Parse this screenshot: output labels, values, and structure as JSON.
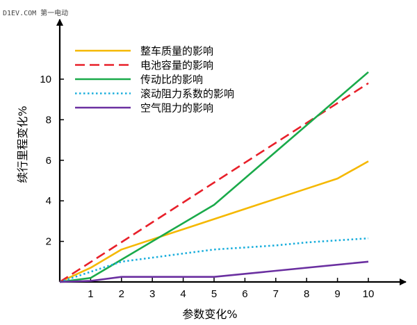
{
  "watermark": "D1EV.COM 第一电动",
  "chart_data": {
    "type": "line",
    "title": "",
    "xlabel": "参数变化%",
    "ylabel": "续行里程变化%",
    "xlim": [
      0,
      10
    ],
    "ylim": [
      0,
      10.5
    ],
    "xticks": [
      1,
      2,
      3,
      4,
      5,
      6,
      7,
      8,
      9,
      10
    ],
    "yticks": [
      2,
      4,
      6,
      8,
      10
    ],
    "grid": false,
    "legend_position": "top-left",
    "series": [
      {
        "name": "整车质量的影响",
        "color": "#f5b800",
        "dash": "solid",
        "x": [
          0,
          1,
          2,
          3,
          4,
          5,
          6,
          7,
          8,
          9,
          10
        ],
        "y": [
          0,
          0.7,
          1.6,
          2.1,
          2.6,
          3.1,
          3.6,
          4.1,
          4.6,
          5.1,
          5.95
        ]
      },
      {
        "name": "电池容量的影响",
        "color": "#e8202a",
        "dash": "dashed",
        "x": [
          0,
          10
        ],
        "y": [
          0,
          9.8
        ]
      },
      {
        "name": "传动比的影响",
        "color": "#1aaa4a",
        "dash": "solid",
        "x": [
          0,
          1,
          5,
          10
        ],
        "y": [
          0,
          0.2,
          3.8,
          10.35
        ]
      },
      {
        "name": "滚动阻力系数的影响",
        "color": "#1aaedc",
        "dash": "dotted",
        "x": [
          0,
          1,
          2,
          3,
          4,
          5,
          6,
          7,
          8,
          9,
          10
        ],
        "y": [
          0,
          0.5,
          1.0,
          1.2,
          1.4,
          1.6,
          1.7,
          1.8,
          1.95,
          2.05,
          2.15
        ]
      },
      {
        "name": "空气阻力的影响",
        "color": "#6a2fa0",
        "dash": "solid",
        "x": [
          0,
          1,
          2,
          3,
          4,
          5,
          10
        ],
        "y": [
          0,
          0.05,
          0.25,
          0.25,
          0.25,
          0.25,
          1.0
        ]
      }
    ]
  }
}
